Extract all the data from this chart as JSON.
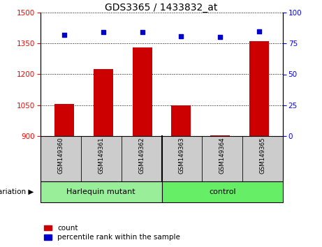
{
  "title": "GDS3365 / 1433832_at",
  "samples": [
    "GSM149360",
    "GSM149361",
    "GSM149362",
    "GSM149363",
    "GSM149364",
    "GSM149365"
  ],
  "bar_values": [
    1055,
    1225,
    1330,
    1050,
    905,
    1360
  ],
  "percentile_values": [
    82,
    84,
    84,
    81,
    80,
    85
  ],
  "ylim_left": [
    900,
    1500
  ],
  "ylim_right": [
    0,
    100
  ],
  "yticks_left": [
    900,
    1050,
    1200,
    1350,
    1500
  ],
  "yticks_right": [
    0,
    25,
    50,
    75,
    100
  ],
  "bar_color": "#cc0000",
  "dot_color": "#0000cc",
  "groups": [
    {
      "label": "Harlequin mutant",
      "n": 3,
      "color": "#99ee99"
    },
    {
      "label": "control",
      "n": 3,
      "color": "#66ee66"
    }
  ],
  "legend_count_label": "count",
  "legend_percentile_label": "percentile rank within the sample",
  "bar_width": 0.5,
  "sample_bg": "#cccccc",
  "plot_bg": "#ffffff"
}
